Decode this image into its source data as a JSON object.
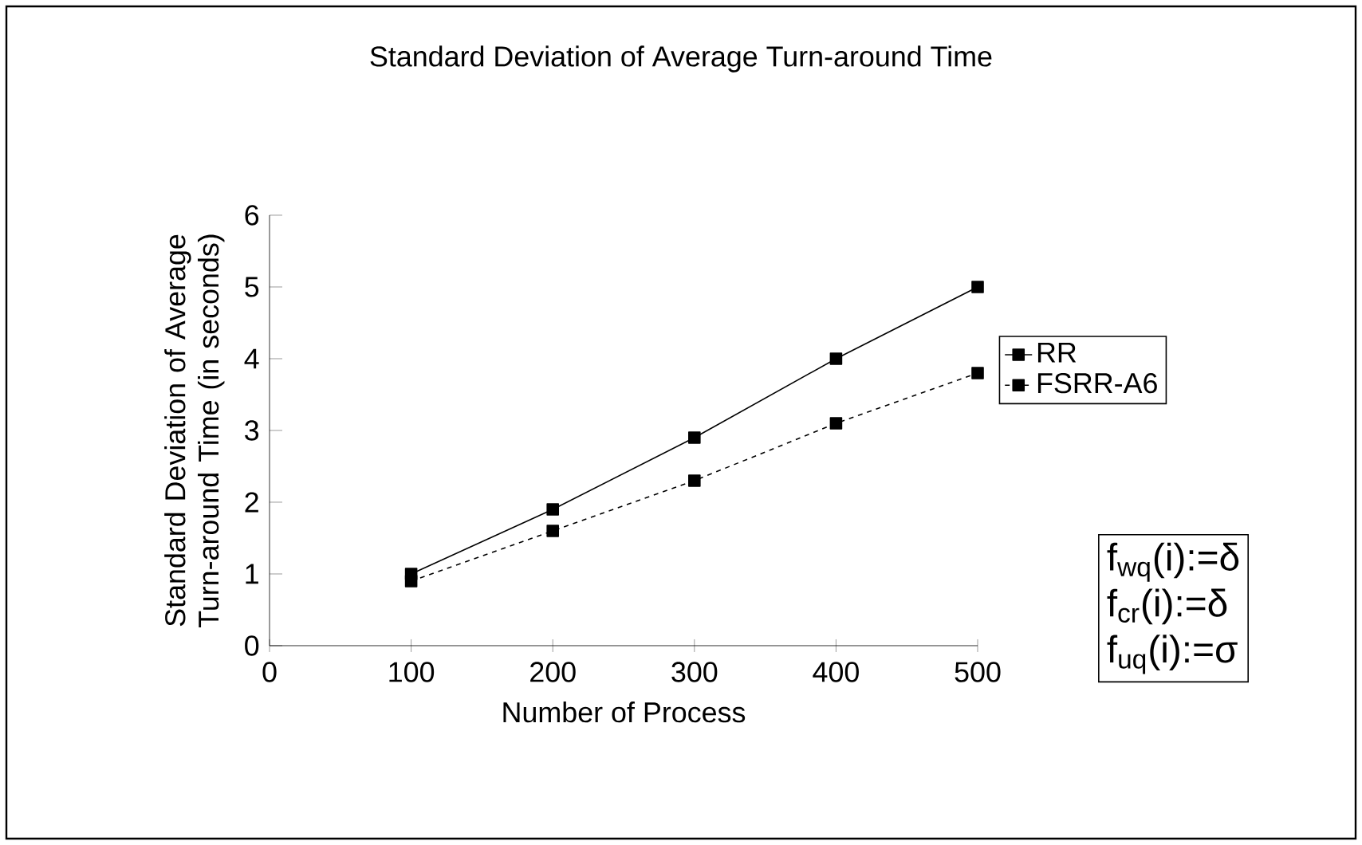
{
  "chart_data": {
    "type": "line",
    "title": "Standard Deviation of Average Turn-around Time",
    "xlabel": "Number of Process",
    "ylabel": "Standard Deviation of Average Turn-around Time (in seconds)",
    "x": [
      100,
      200,
      300,
      400,
      500
    ],
    "series": [
      {
        "name": "RR",
        "color": "#000000",
        "line_style": "solid",
        "values": [
          1.0,
          1.9,
          2.9,
          4.0,
          5.0
        ]
      },
      {
        "name": "FSRR-A6",
        "color": "#000000",
        "line_style": "dashed",
        "values": [
          0.9,
          1.6,
          2.3,
          3.1,
          3.8
        ]
      }
    ],
    "xlim": [
      0,
      500
    ],
    "xticks": [
      0,
      100,
      200,
      300,
      400,
      500
    ],
    "ylim": [
      0,
      6
    ],
    "yticks": [
      0,
      1,
      2,
      3,
      4,
      5,
      6
    ],
    "marker": "square",
    "legend": "right",
    "grid": false,
    "annotations": [
      "f$_{wq}$(i):=δ",
      "f$_{cr}$(i):=δ",
      "f$_{uq}$(i):=σ"
    ]
  }
}
